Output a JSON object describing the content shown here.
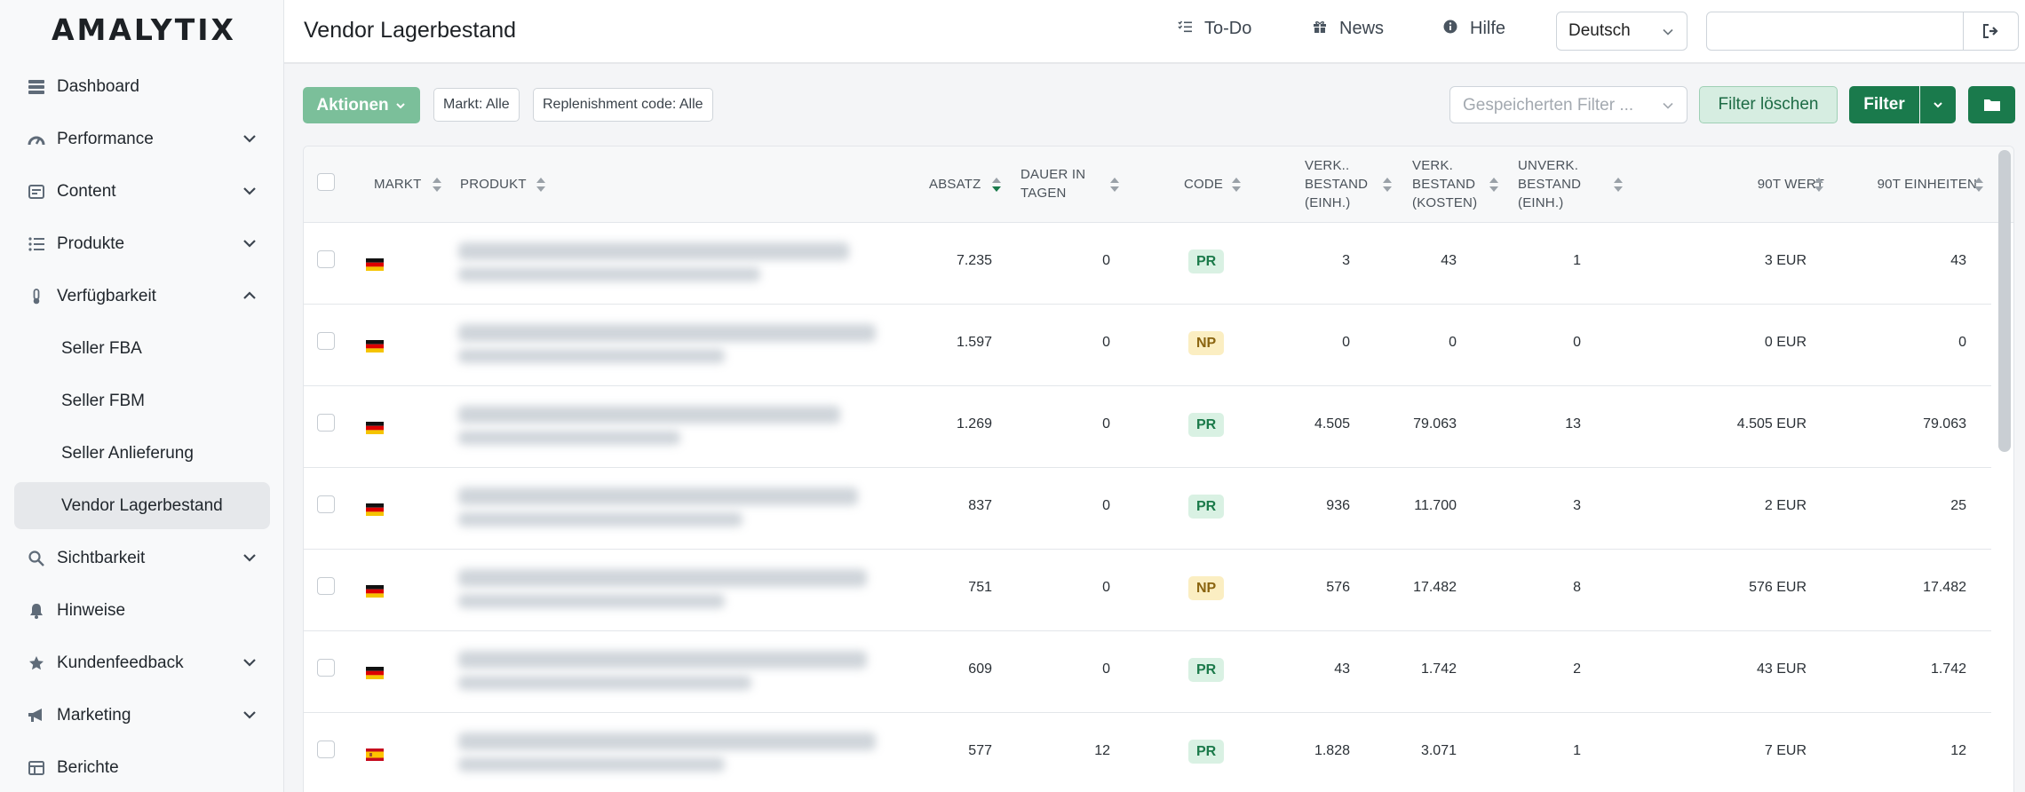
{
  "app": {
    "logo": "AMALYTIX"
  },
  "header": {
    "title": "Vendor Lagerbestand",
    "links": {
      "todo": "To-Do",
      "news": "News",
      "help": "Hilfe"
    },
    "language": "Deutsch",
    "search_value": ""
  },
  "sidebar": {
    "items": [
      {
        "label": "Dashboard",
        "icon": "dashboard-icon",
        "expandable": false
      },
      {
        "label": "Performance",
        "icon": "speedometer-icon",
        "expandable": true
      },
      {
        "label": "Content",
        "icon": "content-icon",
        "expandable": true
      },
      {
        "label": "Produkte",
        "icon": "list-icon",
        "expandable": true
      },
      {
        "label": "Verfügbarkeit",
        "icon": "thermometer-icon",
        "expandable": true,
        "expanded": true
      }
    ],
    "sub_items": [
      {
        "label": "Seller FBA",
        "active": false
      },
      {
        "label": "Seller FBM",
        "active": false
      },
      {
        "label": "Seller Anlieferung",
        "active": false
      },
      {
        "label": "Vendor Lagerbestand",
        "active": true
      }
    ],
    "items_after": [
      {
        "label": "Sichtbarkeit",
        "icon": "search-icon",
        "expandable": true
      },
      {
        "label": "Hinweise",
        "icon": "bell-icon",
        "expandable": false
      },
      {
        "label": "Kundenfeedback",
        "icon": "star-icon",
        "expandable": true
      },
      {
        "label": "Marketing",
        "icon": "megaphone-icon",
        "expandable": true
      },
      {
        "label": "Berichte",
        "icon": "table-icon",
        "expandable": false
      }
    ]
  },
  "toolbar": {
    "actions_label": "Aktionen",
    "chip_market": "Markt: Alle",
    "chip_replenishment": "Replenishment code: Alle",
    "saved_filter_placeholder": "Gespeicherten Filter ...",
    "clear_filter_label": "Filter löschen",
    "filter_label": "Filter"
  },
  "table": {
    "columns": {
      "markt": "MARKT",
      "produkt": "PRODUKT",
      "absatz": "ABSATZ",
      "dauer": [
        "DAUER IN",
        "TAGEN"
      ],
      "code": "CODE",
      "verk_einh": [
        "VERK..",
        "BESTAND",
        "(EINH.)"
      ],
      "verk_kosten": [
        "VERK.",
        "BESTAND",
        "(KOSTEN)"
      ],
      "unverk": [
        "UNVERK.",
        "BESTAND",
        "(EINH.)"
      ],
      "wert90": "90T WERT",
      "einh90": "90T EINHEITEN"
    },
    "rows": [
      {
        "market": "DE",
        "absatz": "7.235",
        "dauer": "0",
        "code": "PR",
        "verk_einh": "3",
        "verk_kosten": "43",
        "unverk": "1",
        "wert90": "3 EUR",
        "einh90": "43"
      },
      {
        "market": "DE",
        "absatz": "1.597",
        "dauer": "0",
        "code": "NP",
        "verk_einh": "0",
        "verk_kosten": "0",
        "unverk": "0",
        "wert90": "0 EUR",
        "einh90": "0"
      },
      {
        "market": "DE",
        "absatz": "1.269",
        "dauer": "0",
        "code": "PR",
        "verk_einh": "4.505",
        "verk_kosten": "79.063",
        "unverk": "13",
        "wert90": "4.505 EUR",
        "einh90": "79.063"
      },
      {
        "market": "DE",
        "absatz": "837",
        "dauer": "0",
        "code": "PR",
        "verk_einh": "936",
        "verk_kosten": "11.700",
        "unverk": "3",
        "wert90": "2 EUR",
        "einh90": "25"
      },
      {
        "market": "DE",
        "absatz": "751",
        "dauer": "0",
        "code": "NP",
        "verk_einh": "576",
        "verk_kosten": "17.482",
        "unverk": "8",
        "wert90": "576 EUR",
        "einh90": "17.482"
      },
      {
        "market": "DE",
        "absatz": "609",
        "dauer": "0",
        "code": "PR",
        "verk_einh": "43",
        "verk_kosten": "1.742",
        "unverk": "2",
        "wert90": "43 EUR",
        "einh90": "1.742"
      },
      {
        "market": "ES",
        "absatz": "577",
        "dauer": "12",
        "code": "PR",
        "verk_einh": "1.828",
        "verk_kosten": "3.071",
        "unverk": "1",
        "wert90": "7 EUR",
        "einh90": "12"
      }
    ]
  },
  "colors": {
    "primary": "#1a7a4c",
    "primary_light": "#7bbf9a",
    "badge_pr": "#d9f1e3",
    "badge_np": "#fbeec2"
  }
}
